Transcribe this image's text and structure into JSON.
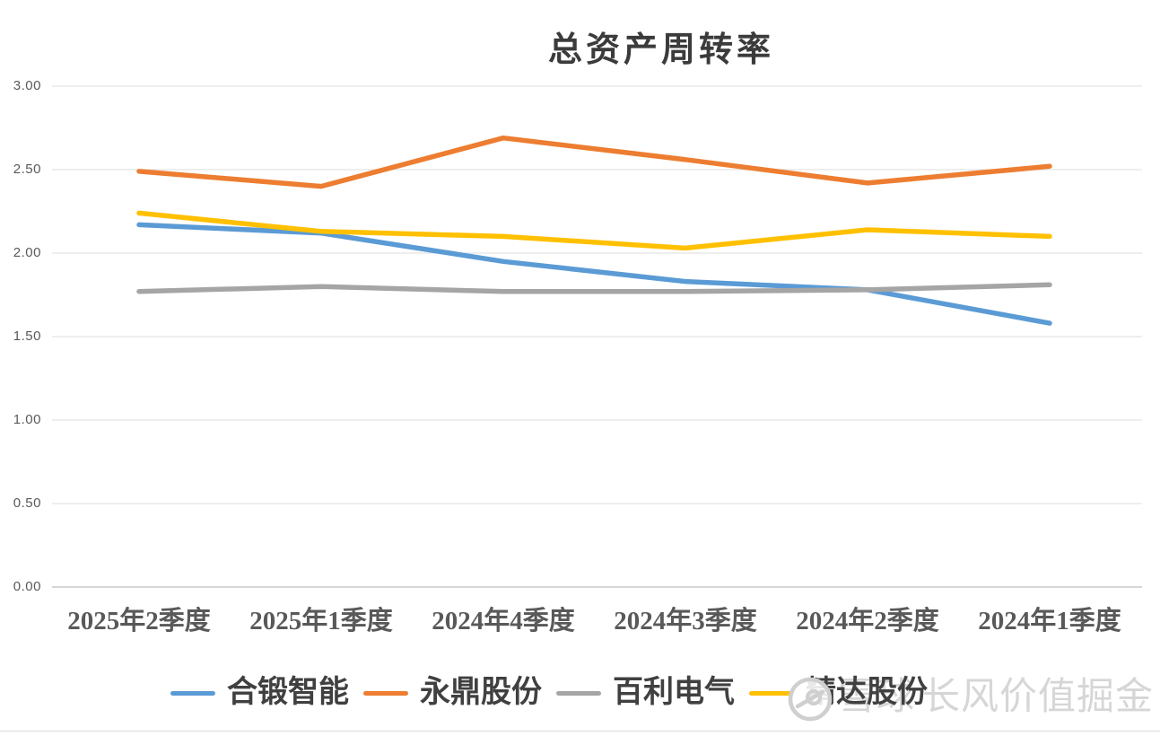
{
  "chart_data": {
    "type": "line",
    "title": "总资产周转率",
    "xlabel": "",
    "ylabel": "",
    "categories": [
      "2025年2季度",
      "2025年1季度",
      "2024年4季度",
      "2024年3季度",
      "2024年2季度",
      "2024年1季度"
    ],
    "series": [
      {
        "name": "合锻智能",
        "color": "#5B9BD5",
        "values": [
          2.17,
          2.12,
          1.95,
          1.83,
          1.78,
          1.58
        ]
      },
      {
        "name": "永鼎股份",
        "color": "#ED7D31",
        "values": [
          2.49,
          2.4,
          2.69,
          2.56,
          2.42,
          2.52
        ]
      },
      {
        "name": "百利电气",
        "color": "#A5A5A5",
        "values": [
          1.77,
          1.8,
          1.77,
          1.77,
          1.78,
          1.81
        ]
      },
      {
        "name": "精达股份",
        "color": "#FFC000",
        "values": [
          2.24,
          2.13,
          2.1,
          2.03,
          2.14,
          2.1
        ]
      }
    ],
    "ylim": [
      0,
      3
    ],
    "ytick_step": 0.5,
    "ytick_labels": [
      "0.00",
      "0.50",
      "1.00",
      "1.50",
      "2.00",
      "2.50",
      "3.00"
    ],
    "grid": true,
    "legend_position": "bottom"
  },
  "watermark": {
    "brand": "雪球",
    "author": "长风价值掘金",
    "logo": "snowball-logo"
  },
  "colors": {
    "title_text": "#3B3B3B",
    "axis_text": "#595959",
    "legend_text": "#404040",
    "grid_line": "#E4E4E4",
    "axis_line": "#C9C9C9",
    "watermark_text": "#D6D6D6"
  }
}
